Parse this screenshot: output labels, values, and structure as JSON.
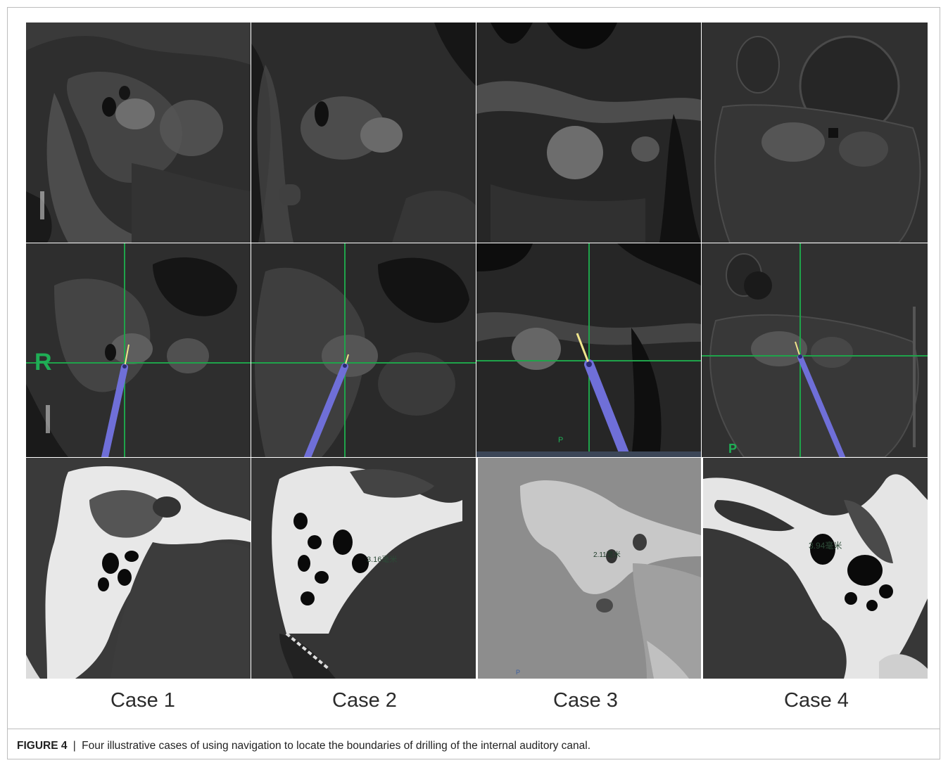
{
  "figure": {
    "label": "FIGURE 4",
    "separator": "|",
    "caption": "Four illustrative cases of using navigation to locate the boundaries of drilling of the internal auditory canal."
  },
  "cases": [
    {
      "label": "Case 1"
    },
    {
      "label": "Case 2"
    },
    {
      "label": "Case 3"
    },
    {
      "label": "Case 4"
    }
  ],
  "overlays": {
    "side_marker": "R",
    "posterior_marker_case3": "P",
    "posterior_marker_case4": "P",
    "posterior_marker_ct3": "P",
    "measure_case2": "3.16毫米",
    "measure_case3": "2.11毫米",
    "measure_case4": "3.94毫米"
  },
  "colors": {
    "crosshair": "#1fa34a",
    "probe_shaft": "#6f6fd8",
    "probe_tip": "#f0e68c",
    "marker_green": "#1fae55"
  }
}
